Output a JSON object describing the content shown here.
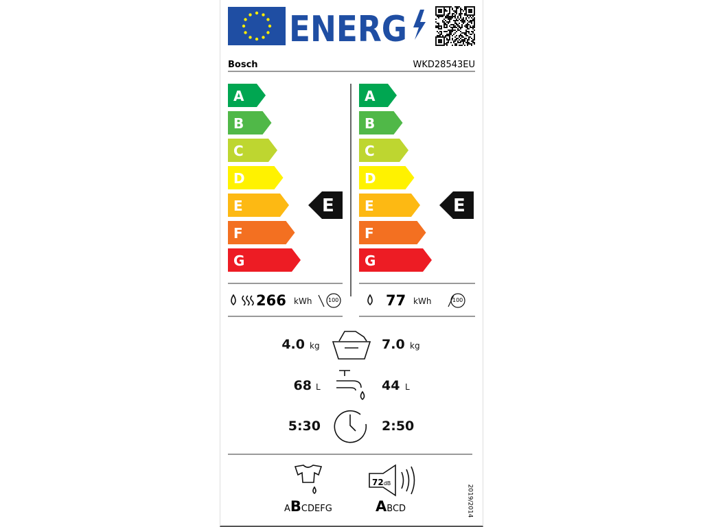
{
  "header": {
    "title": "ENERG",
    "brand": "Bosch",
    "model": "WKD28543EU"
  },
  "scales": [
    {
      "classes": [
        "A",
        "B",
        "C",
        "D",
        "E",
        "F",
        "G"
      ],
      "rating": "E",
      "consumption": {
        "value": "266",
        "unit": "kWh",
        "cycles": "100"
      }
    },
    {
      "classes": [
        "A",
        "B",
        "C",
        "D",
        "E",
        "F",
        "G"
      ],
      "rating": "E",
      "consumption": {
        "value": "77",
        "unit": "kWh",
        "cycles": "100"
      }
    }
  ],
  "specs": {
    "capacity": {
      "left": "4.0",
      "left_unit": "kg",
      "right": "7.0",
      "right_unit": "kg"
    },
    "water": {
      "left": "68",
      "left_unit": "L",
      "right": "44",
      "right_unit": "L"
    },
    "duration": {
      "left": "5:30",
      "right": "2:50"
    }
  },
  "spin": {
    "before": "A",
    "class": "B",
    "after": "CDEFG"
  },
  "noise": {
    "value": "72",
    "unit": "dB",
    "class": "A",
    "after": "BCD"
  },
  "regulation": "2019/2014"
}
